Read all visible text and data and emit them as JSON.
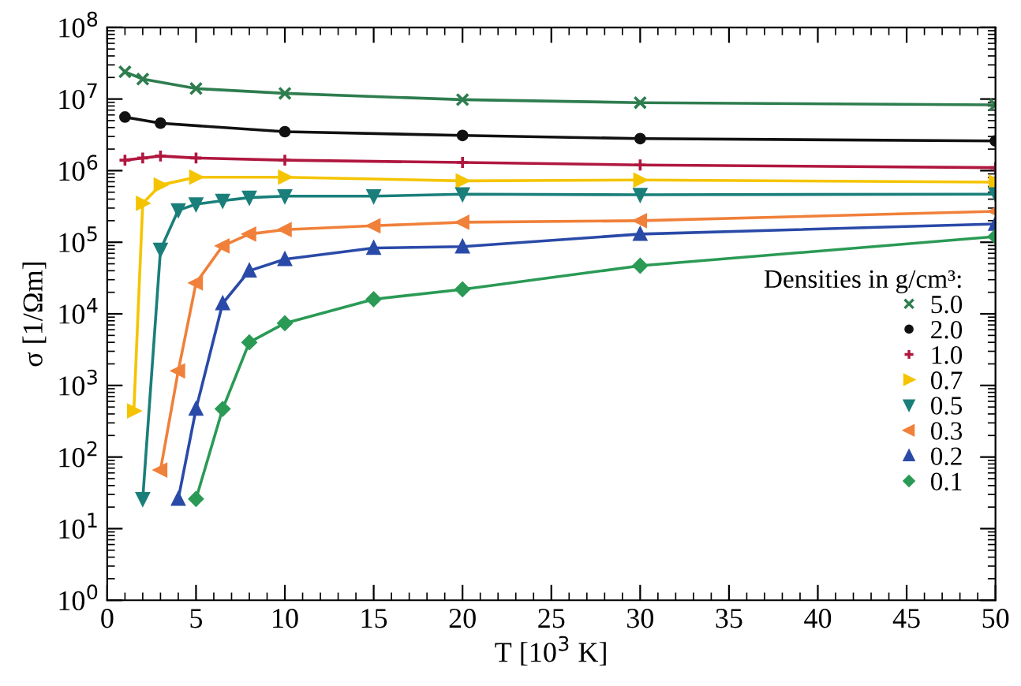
{
  "chart_data": {
    "type": "line",
    "xlabel": "T [10$^{3}$ K]",
    "ylabel": "σ [1/Ωm]",
    "legend_title": "Densities in g/cm³:",
    "legend": "right",
    "log": "y",
    "grid": false,
    "xlim": [
      0,
      50
    ],
    "xticks": [
      0,
      5,
      10,
      15,
      20,
      25,
      30,
      35,
      40,
      45,
      50
    ],
    "ylim": [
      1,
      100000000
    ],
    "yticks": [
      {
        "value": 1,
        "label": "10$^{0}$"
      },
      {
        "value": 10,
        "label": "10$^{1}$"
      },
      {
        "value": 100,
        "label": "10$^{2}$"
      },
      {
        "value": 1000,
        "label": "10$^{3}$"
      },
      {
        "value": 10000,
        "label": "10$^{4}$"
      },
      {
        "value": 100000,
        "label": "10$^{5}$"
      },
      {
        "value": 1000000,
        "label": "10$^{6}$"
      },
      {
        "value": 10000000,
        "label": "10$^{7}$"
      },
      {
        "value": 100000000,
        "label": "10$^{8}$"
      }
    ],
    "series": [
      {
        "name": "5.0",
        "color": "#2e7d4f",
        "marker": "cross",
        "x": [
          1,
          2,
          5,
          10,
          20,
          30,
          50
        ],
        "values": [
          24000000,
          19000000,
          14000000,
          12000000,
          9800000,
          8900000,
          8300000
        ]
      },
      {
        "name": "2.0",
        "color": "#111111",
        "marker": "circle",
        "x": [
          1,
          3,
          10,
          20,
          30,
          50
        ],
        "values": [
          5600000,
          4600000,
          3500000,
          3100000,
          2800000,
          2600000
        ]
      },
      {
        "name": "1.0",
        "color": "#b0173f",
        "marker": "plus",
        "x": [
          1,
          2,
          3,
          5,
          10,
          20,
          30,
          50
        ],
        "values": [
          1400000,
          1500000,
          1600000,
          1500000,
          1400000,
          1300000,
          1200000,
          1100000
        ]
      },
      {
        "name": "0.7",
        "color": "#f5c400",
        "marker": "triangle-right",
        "x": [
          1.5,
          2,
          3,
          5,
          10,
          20,
          30,
          50
        ],
        "values": [
          440,
          350000,
          630000,
          810000,
          810000,
          720000,
          740000,
          690000
        ]
      },
      {
        "name": "0.5",
        "color": "#1a7f7a",
        "marker": "triangle-down",
        "x": [
          2,
          3,
          4,
          5,
          6.5,
          8,
          10,
          15,
          20,
          30,
          50
        ],
        "values": [
          26,
          79000,
          280000,
          340000,
          380000,
          420000,
          440000,
          440000,
          470000,
          460000,
          470000
        ]
      },
      {
        "name": "0.3",
        "color": "#f0803a",
        "marker": "triangle-left",
        "x": [
          3,
          4,
          5,
          6.5,
          8,
          10,
          15,
          20,
          30,
          50
        ],
        "values": [
          66,
          1600,
          27000,
          89000,
          130000,
          150000,
          170000,
          190000,
          200000,
          270000
        ]
      },
      {
        "name": "0.2",
        "color": "#2a4aa8",
        "marker": "triangle-up",
        "x": [
          4,
          5,
          6.5,
          8,
          10,
          15,
          20,
          30,
          50
        ],
        "values": [
          26,
          470,
          14000,
          40000,
          58000,
          83000,
          87000,
          130000,
          180000
        ]
      },
      {
        "name": "0.1",
        "color": "#2a9a55",
        "marker": "diamond",
        "x": [
          5,
          6.5,
          8,
          10,
          15,
          20,
          30,
          50
        ],
        "values": [
          26,
          470,
          4000,
          7400,
          16000,
          22000,
          47000,
          120000
        ]
      }
    ]
  }
}
